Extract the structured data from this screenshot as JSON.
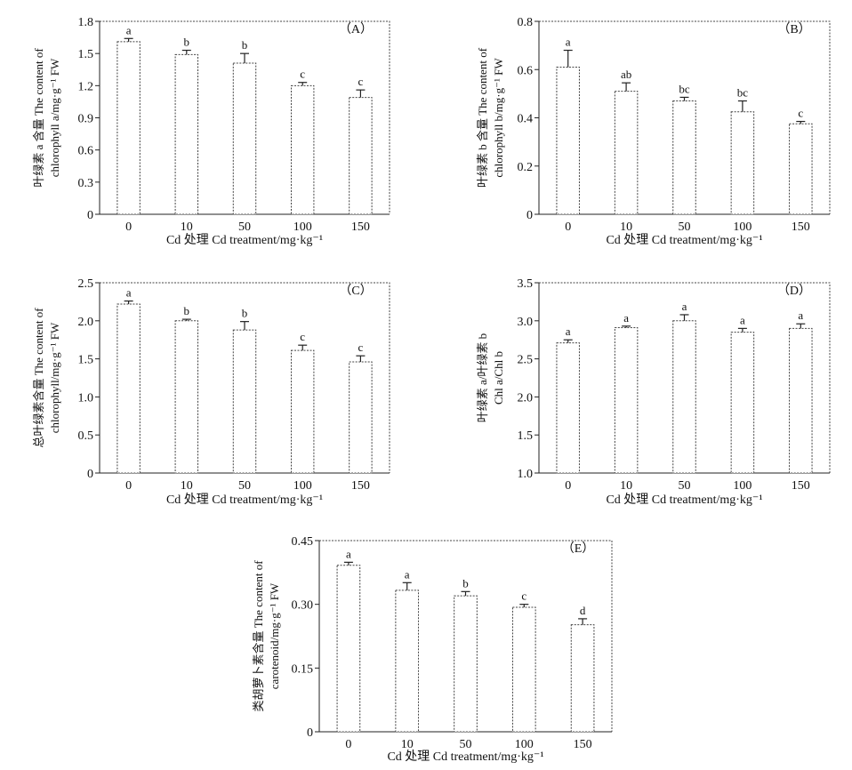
{
  "chart_data": [
    {
      "type": "bar",
      "panel_label": "（A）",
      "ylabel_cn": "叶绿素 a 含量 The content of",
      "ylabel_en": "chlorophyll a/mg·g⁻¹ FW",
      "xlabel": "Cd 处理 Cd treatment/mg·kg⁻¹",
      "categories": [
        "0",
        "10",
        "50",
        "100",
        "150"
      ],
      "values": [
        1.61,
        1.49,
        1.41,
        1.2,
        1.09
      ],
      "errors": [
        0.03,
        0.04,
        0.09,
        0.03,
        0.07
      ],
      "letters": [
        "a",
        "b",
        "b",
        "c",
        "c"
      ],
      "yticks": [
        "0",
        "0.3",
        "0.6",
        "0.9",
        "1.2",
        "1.5",
        "1.8"
      ],
      "ylim": [
        0,
        1.8
      ]
    },
    {
      "type": "bar",
      "panel_label": "（B）",
      "ylabel_cn": "叶绿素 b 含量 The content of",
      "ylabel_en": "chlorophyll b/mg·g⁻¹ FW",
      "xlabel": "Cd 处理 Cd treatment/mg·kg⁻¹",
      "categories": [
        "0",
        "10",
        "50",
        "100",
        "150"
      ],
      "values": [
        0.61,
        0.51,
        0.47,
        0.425,
        0.375
      ],
      "errors": [
        0.07,
        0.035,
        0.015,
        0.045,
        0.01
      ],
      "letters": [
        "a",
        "ab",
        "bc",
        "bc",
        "c"
      ],
      "yticks": [
        "0",
        "0.2",
        "0.4",
        "0.6",
        "0.8"
      ],
      "ylim": [
        0,
        0.8
      ]
    },
    {
      "type": "bar",
      "panel_label": "（C）",
      "ylabel_cn": "总叶绿素含量 The content of",
      "ylabel_en": "chlorophyll/mg·g⁻¹ FW",
      "xlabel": "Cd 处理 Cd treatment/mg·kg⁻¹",
      "categories": [
        "0",
        "10",
        "50",
        "100",
        "150"
      ],
      "values": [
        2.22,
        2.0,
        1.88,
        1.61,
        1.46
      ],
      "errors": [
        0.04,
        0.02,
        0.11,
        0.07,
        0.08
      ],
      "letters": [
        "a",
        "b",
        "b",
        "c",
        "c"
      ],
      "yticks": [
        "0",
        "0.5",
        "1.0",
        "1.5",
        "2.0",
        "2.5"
      ],
      "ylim": [
        0,
        2.5
      ]
    },
    {
      "type": "bar",
      "panel_label": "（D）",
      "ylabel_cn": "叶绿素 a/叶绿素 b",
      "ylabel_en": "Chl a/Chl b",
      "xlabel": "Cd 处理 Cd treatment/mg·kg⁻¹",
      "categories": [
        "0",
        "10",
        "50",
        "100",
        "150"
      ],
      "values": [
        2.71,
        2.91,
        3.0,
        2.85,
        2.9
      ],
      "errors": [
        0.04,
        0.02,
        0.08,
        0.05,
        0.06
      ],
      "letters": [
        "a",
        "a",
        "a",
        "a",
        "a"
      ],
      "yticks": [
        "1.0",
        "1.5",
        "2.0",
        "2.5",
        "3.0",
        "3.5"
      ],
      "ylim": [
        1.0,
        3.5
      ]
    },
    {
      "type": "bar",
      "panel_label": "（E）",
      "ylabel_cn": "类胡萝卜素含量 The content of",
      "ylabel_en": "carotenoid/mg·g⁻¹ FW",
      "xlabel": "Cd 处理 Cd treatment/mg·kg⁻¹",
      "categories": [
        "0",
        "10",
        "50",
        "100",
        "150"
      ],
      "values": [
        0.392,
        0.333,
        0.32,
        0.293,
        0.252
      ],
      "errors": [
        0.007,
        0.018,
        0.01,
        0.007,
        0.014
      ],
      "letters": [
        "a",
        "a",
        "b",
        "c",
        "d"
      ],
      "yticks": [
        "0",
        "0.15",
        "0.30",
        "0.45"
      ],
      "ylim": [
        0,
        0.45
      ]
    }
  ]
}
